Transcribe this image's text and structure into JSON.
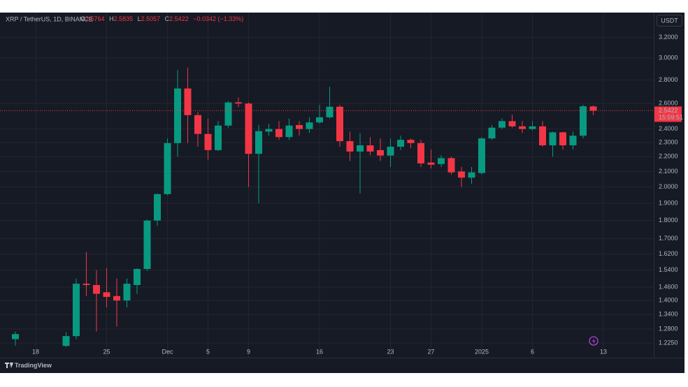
{
  "chart_data": {
    "type": "candlestick",
    "title": "XRP / TetherUS, 1D, BINANCE",
    "legend_labels": {
      "open": "O",
      "high": "H",
      "low": "L",
      "close": "C"
    },
    "change": "−0.0342 (−1.33%)",
    "currency": "USDT",
    "countdown": "15:59:51",
    "brand": "TradingView",
    "categories": [
      null,
      null,
      "18",
      null,
      null,
      null,
      null,
      null,
      null,
      "25",
      null,
      null,
      null,
      null,
      null,
      "Dec",
      null,
      null,
      null,
      "5",
      null,
      null,
      null,
      "9",
      null,
      null,
      null,
      null,
      null,
      null,
      "16",
      null,
      null,
      null,
      null,
      null,
      null,
      "23",
      null,
      null,
      null,
      "27",
      null,
      null,
      null,
      null,
      "2025",
      null,
      null,
      null,
      null,
      "6",
      null,
      null,
      null,
      null,
      null,
      null,
      "13"
    ],
    "open": [
      1.24,
      null,
      null,
      null,
      null,
      1.214,
      1.252,
      1.476,
      1.47,
      1.437,
      1.42,
      1.4,
      1.47,
      1.546,
      1.8,
      1.956,
      2.296,
      2.726,
      2.507,
      2.363,
      2.246,
      2.426,
      2.61,
      2.6,
      2.22,
      2.38,
      2.4,
      2.34,
      2.43,
      2.4,
      2.45,
      2.49,
      2.574,
      2.31,
      2.236,
      2.28,
      2.246,
      2.208,
      2.27,
      2.32,
      2.296,
      2.16,
      2.15,
      2.19,
      2.1,
      2.06,
      2.09,
      2.33,
      2.41,
      2.46,
      2.42,
      2.4,
      2.42,
      2.28,
      2.375,
      2.28,
      2.35,
      2.5764,
      null
    ],
    "high": [
      1.27,
      null,
      null,
      null,
      null,
      1.268,
      1.5,
      1.63,
      1.54,
      1.55,
      1.5,
      1.5,
      1.55,
      1.805,
      1.96,
      2.33,
      2.89,
      2.91,
      2.53,
      2.48,
      2.46,
      2.62,
      2.65,
      2.61,
      2.43,
      2.44,
      2.46,
      2.48,
      2.46,
      2.49,
      2.59,
      2.74,
      2.59,
      2.38,
      2.37,
      2.34,
      2.33,
      2.33,
      2.35,
      2.33,
      2.32,
      2.25,
      2.21,
      2.2,
      2.13,
      2.13,
      2.34,
      2.43,
      2.48,
      2.51,
      2.46,
      2.46,
      2.46,
      2.38,
      2.38,
      2.38,
      2.59,
      2.5835,
      null
    ],
    "low": [
      1.215,
      null,
      null,
      null,
      null,
      1.21,
      1.24,
      1.42,
      1.27,
      1.37,
      1.29,
      1.37,
      1.43,
      1.536,
      1.77,
      1.95,
      2.2,
      2.296,
      2.27,
      2.18,
      2.24,
      2.41,
      2.57,
      2.0,
      1.9,
      2.35,
      2.32,
      2.32,
      2.35,
      2.37,
      2.44,
      2.48,
      2.27,
      2.17,
      1.96,
      2.21,
      2.17,
      2.13,
      2.246,
      2.26,
      2.13,
      2.12,
      2.13,
      2.08,
      2.0,
      2.02,
      2.08,
      2.32,
      2.4,
      2.41,
      2.37,
      2.39,
      2.27,
      2.2,
      2.25,
      2.25,
      2.33,
      2.5057,
      null
    ],
    "close": [
      1.26,
      null,
      null,
      null,
      null,
      1.252,
      1.476,
      1.47,
      1.43,
      1.416,
      1.4,
      1.476,
      1.546,
      1.8,
      1.956,
      2.296,
      2.726,
      2.507,
      2.363,
      2.246,
      2.426,
      2.609,
      2.6,
      2.22,
      2.384,
      2.4,
      2.34,
      2.426,
      2.4,
      2.45,
      2.49,
      2.574,
      2.31,
      2.236,
      2.28,
      2.236,
      2.208,
      2.27,
      2.32,
      2.296,
      2.154,
      2.145,
      2.19,
      2.094,
      2.06,
      2.094,
      2.33,
      2.41,
      2.46,
      2.42,
      2.4,
      2.42,
      2.28,
      2.375,
      2.28,
      2.35,
      2.578,
      2.5422,
      null
    ],
    "up_color": "#089981",
    "down_color": "#f23645",
    "log_scale": true,
    "grid": true,
    "ylim": [
      1.17,
      3.46
    ],
    "yticks": [
      {
        "value": 3.2,
        "label": "3.2000"
      },
      {
        "value": 3.0,
        "label": "3.0000"
      },
      {
        "value": 2.8,
        "label": "2.8000"
      },
      {
        "value": 2.6,
        "label": "2.6000"
      },
      {
        "value": 2.4,
        "label": "2.4000"
      },
      {
        "value": 2.3,
        "label": "2.3000"
      },
      {
        "value": 2.2,
        "label": "2.2000"
      },
      {
        "value": 2.1,
        "label": "2.1000"
      },
      {
        "value": 2.0,
        "label": "2.0000"
      },
      {
        "value": 1.9,
        "label": "1.9000"
      },
      {
        "value": 1.8,
        "label": "1.8000"
      },
      {
        "value": 1.7,
        "label": "1.7000"
      },
      {
        "value": 1.62,
        "label": "1.6200"
      },
      {
        "value": 1.54,
        "label": "1.5400"
      },
      {
        "value": 1.46,
        "label": "1.4600"
      },
      {
        "value": 1.4,
        "label": "1.4000"
      },
      {
        "value": 1.34,
        "label": "1.3400"
      },
      {
        "value": 1.28,
        "label": "1.2800"
      },
      {
        "value": 1.225,
        "label": "1.2250"
      }
    ]
  }
}
